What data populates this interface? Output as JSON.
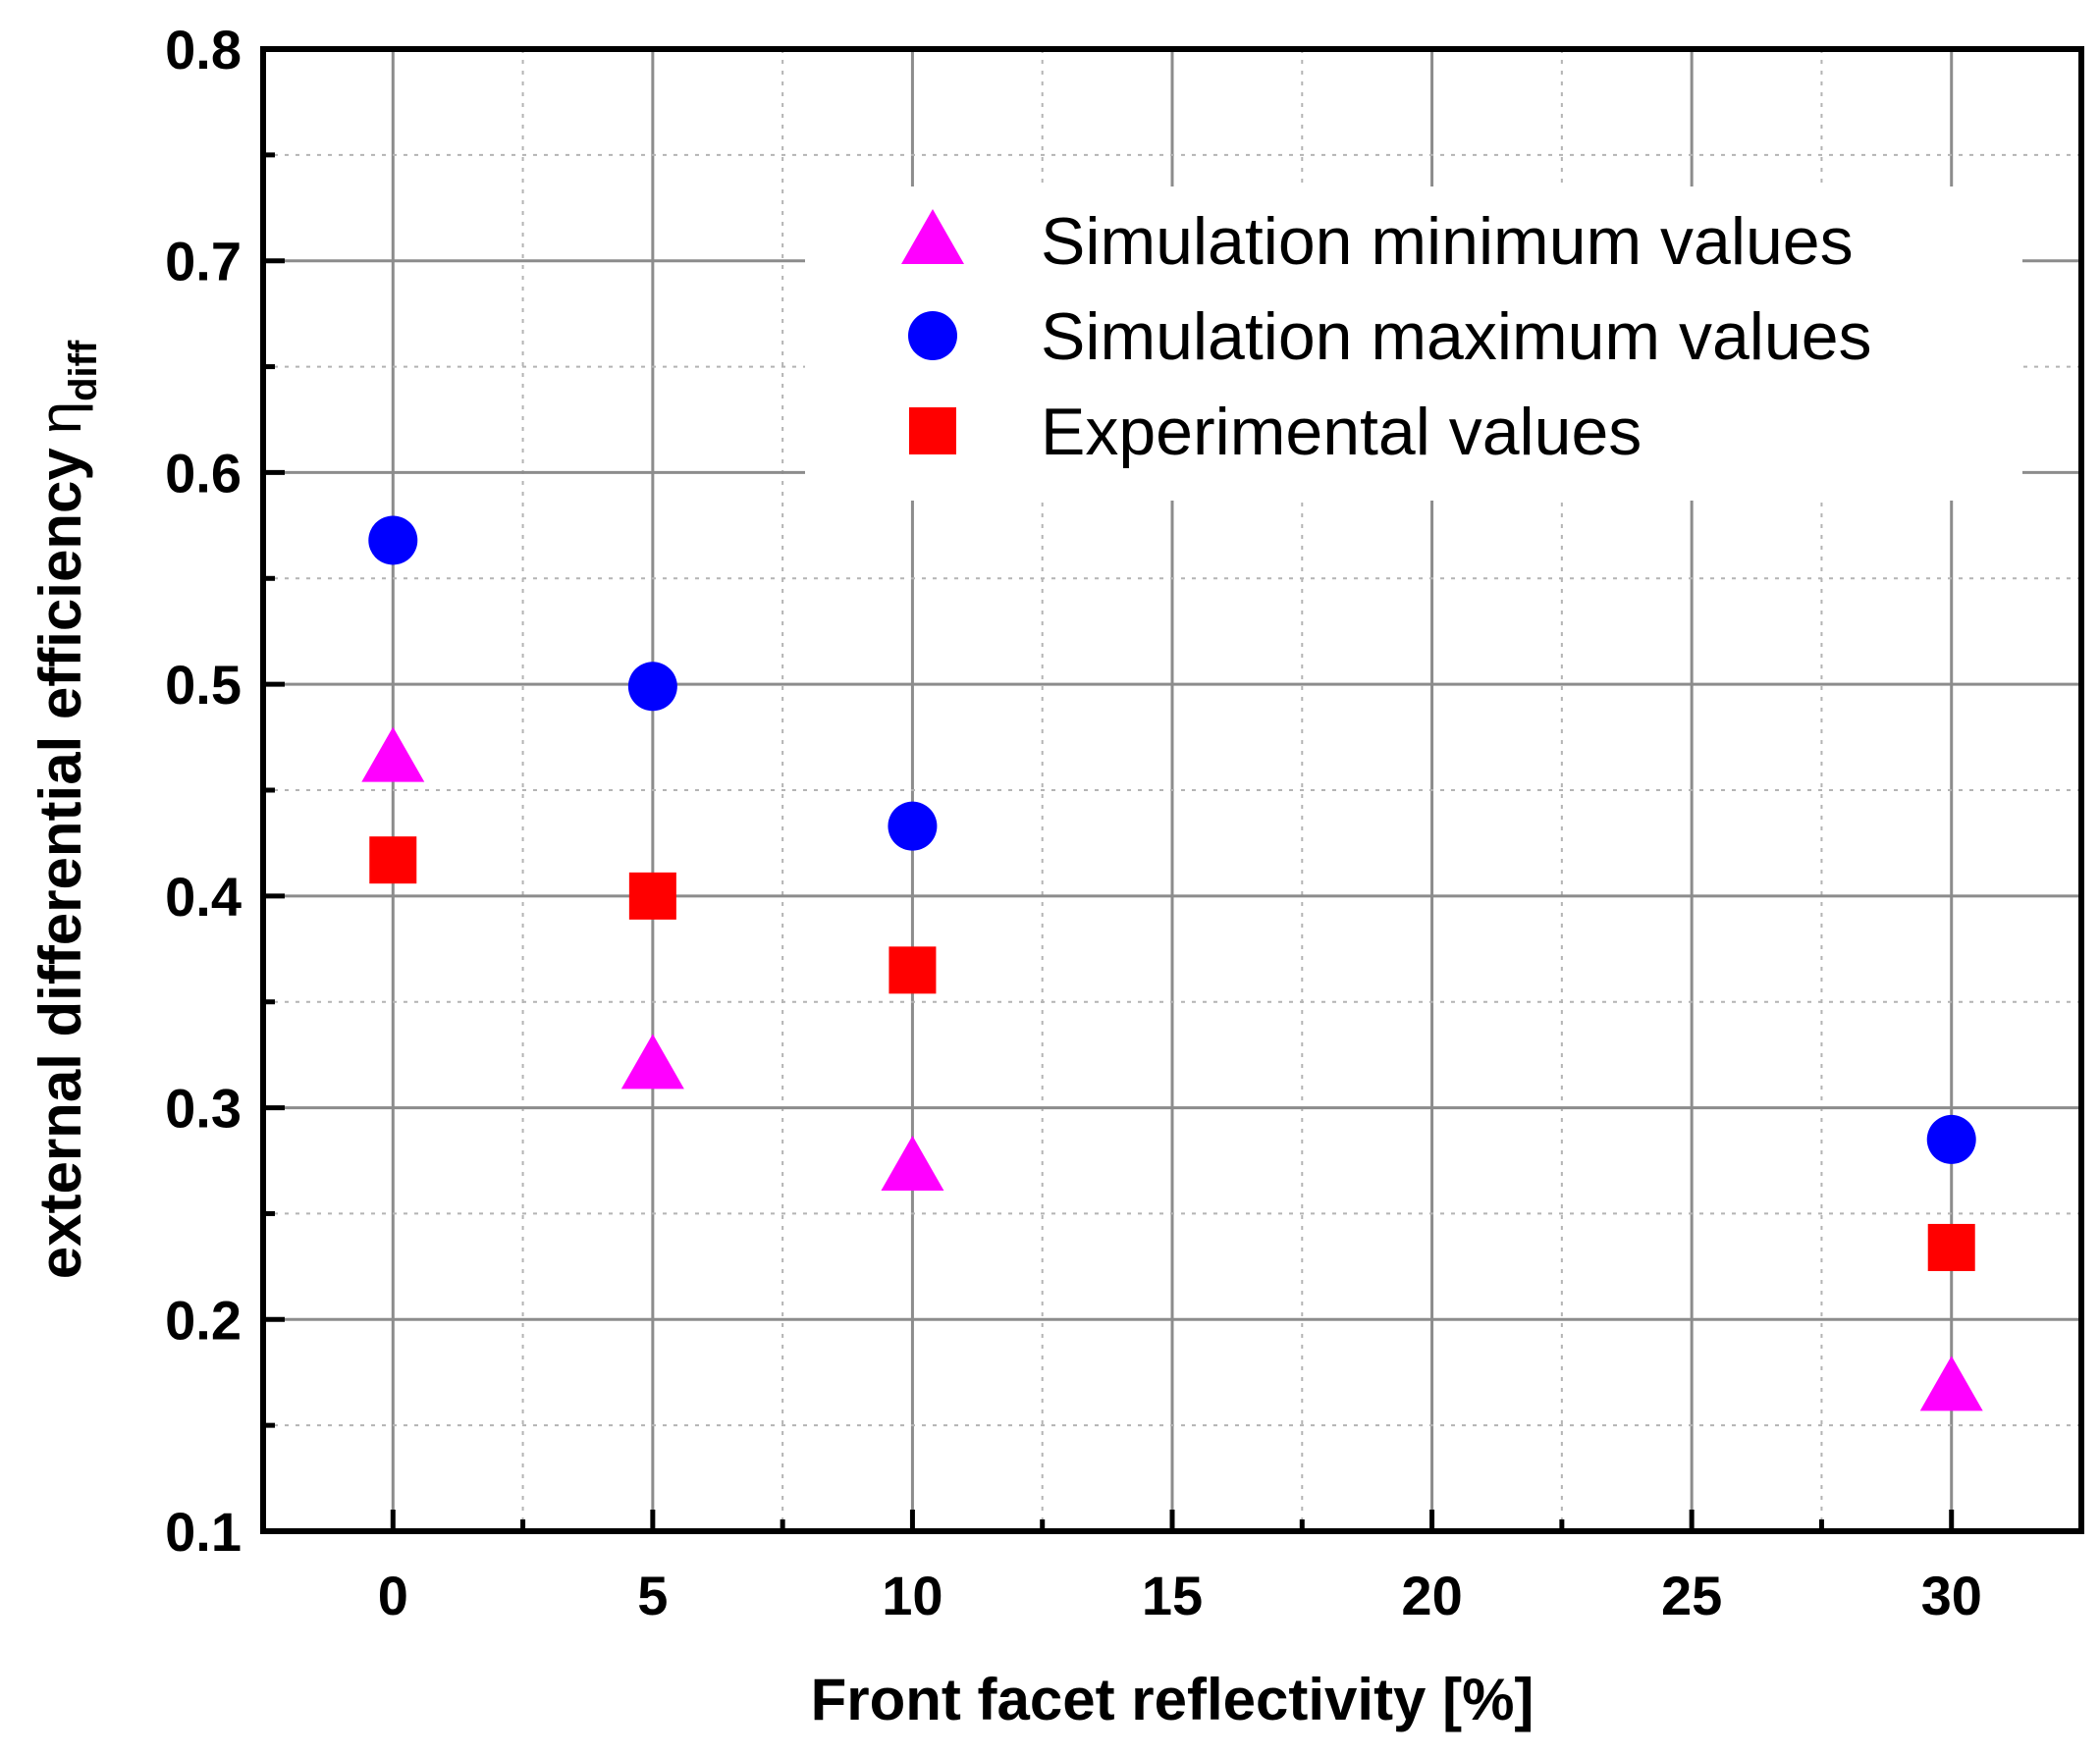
{
  "chart_data": {
    "type": "scatter",
    "title": "",
    "xlabel": "Front facet reflectivity [%]",
    "ylabel": "external differential efficiency",
    "ylabel_symbol": "η",
    "ylabel_subscript": "diff",
    "xlim": [
      -2.5,
      32.5
    ],
    "ylim": [
      0.1,
      0.8
    ],
    "x_ticks": [
      0,
      5,
      10,
      15,
      20,
      25,
      30
    ],
    "x_tick_labels": [
      "0",
      "5",
      "10",
      "15",
      "20",
      "25",
      "30"
    ],
    "y_ticks": [
      0.1,
      0.2,
      0.3,
      0.4,
      0.5,
      0.6,
      0.7,
      0.8
    ],
    "y_tick_labels": [
      "0.1",
      "0.2",
      "0.3",
      "0.4",
      "0.5",
      "0.6",
      "0.7",
      "0.8"
    ],
    "grid": true,
    "legend_position": "top-right",
    "series": [
      {
        "name": "Simulation minimum values",
        "marker": "triangle",
        "color": "#ff00ff",
        "x": [
          0,
          5,
          10,
          30
        ],
        "y": [
          0.465,
          0.32,
          0.272,
          0.168
        ]
      },
      {
        "name": "Simulation maximum values",
        "marker": "circle",
        "color": "#0000ff",
        "x": [
          0,
          5,
          10,
          30
        ],
        "y": [
          0.568,
          0.499,
          0.433,
          0.285
        ]
      },
      {
        "name": "Experimental values",
        "marker": "square",
        "color": "#ff0000",
        "x": [
          0,
          5,
          10,
          30
        ],
        "y": [
          0.417,
          0.4,
          0.365,
          0.234
        ]
      }
    ]
  }
}
